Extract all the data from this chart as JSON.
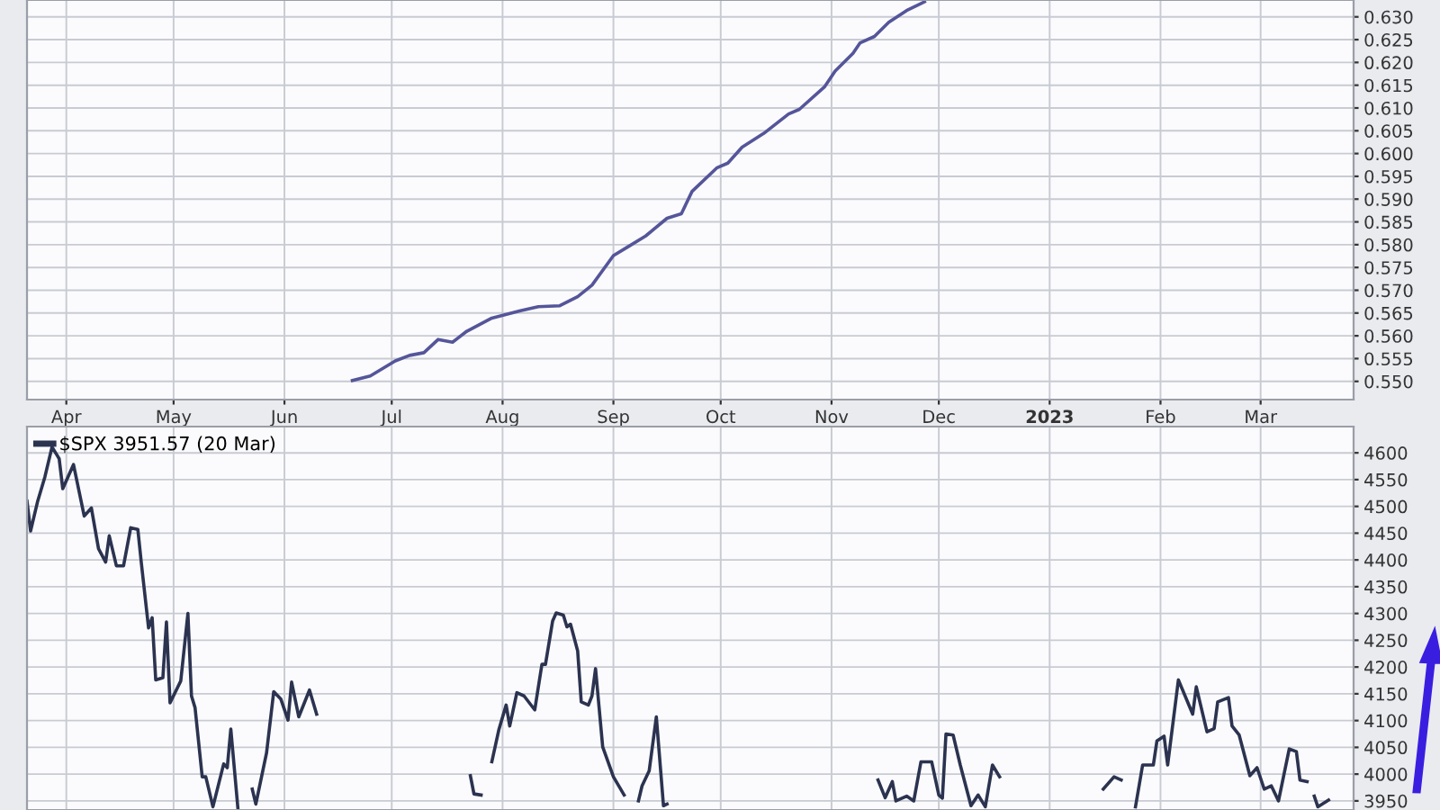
{
  "chart_data": [
    {
      "type": "line",
      "x": [
        "2022-06-20",
        "2022-06-25",
        "2022-07-02",
        "2022-07-06",
        "2022-07-10",
        "2022-07-14",
        "2022-07-18",
        "2022-07-22",
        "2022-07-29",
        "2022-08-06",
        "2022-08-11",
        "2022-08-17",
        "2022-08-22",
        "2022-08-26",
        "2022-09-01",
        "2022-09-05",
        "2022-09-10",
        "2022-09-16",
        "2022-09-20",
        "2022-09-23",
        "2022-09-30",
        "2022-10-03",
        "2022-10-07",
        "2022-10-13",
        "2022-10-20",
        "2022-10-23",
        "2022-10-30",
        "2022-11-02",
        "2022-11-07",
        "2022-11-09",
        "2022-11-13",
        "2022-11-17",
        "2022-11-22",
        "2022-11-27"
      ],
      "series": [
        {
          "color": "#55559a",
          "values": [
            0.5502,
            0.5512,
            0.5545,
            0.5557,
            0.5563,
            0.5592,
            0.5586,
            0.561,
            0.5639,
            0.5655,
            0.5664,
            0.5666,
            0.5686,
            0.5711,
            0.5776,
            0.5795,
            0.5819,
            0.5858,
            0.5868,
            0.5917,
            0.5969,
            0.5979,
            0.6014,
            0.6044,
            0.6087,
            0.6097,
            0.6146,
            0.6181,
            0.622,
            0.6243,
            0.6257,
            0.6288,
            0.6314,
            0.6333
          ]
        }
      ],
      "xlim": [
        "2022-03-21",
        "2023-03-27"
      ],
      "xticks": [
        {
          "value": "2022-04-01",
          "label": "Apr"
        },
        {
          "value": "2022-05-01",
          "label": "May"
        },
        {
          "value": "2022-06-01",
          "label": "Jun"
        },
        {
          "value": "2022-07-01",
          "label": "Jul"
        },
        {
          "value": "2022-08-01",
          "label": "Aug"
        },
        {
          "value": "2022-09-01",
          "label": "Sep"
        },
        {
          "value": "2022-10-01",
          "label": "Oct"
        },
        {
          "value": "2022-11-01",
          "label": "Nov"
        },
        {
          "value": "2022-12-01",
          "label": "Dec"
        },
        {
          "value": "2023-01-01",
          "label": "2023"
        },
        {
          "value": "2023-02-01",
          "label": "Feb"
        },
        {
          "value": "2023-03-01",
          "label": "Mar"
        }
      ],
      "ylim": [
        0.546,
        0.6337
      ],
      "yticks": [
        {
          "value": 0.55,
          "label": "0.550"
        },
        {
          "value": 0.555,
          "label": "0.555"
        },
        {
          "value": 0.56,
          "label": "0.560"
        },
        {
          "value": 0.565,
          "label": "0.565"
        },
        {
          "value": 0.57,
          "label": "0.570"
        },
        {
          "value": 0.575,
          "label": "0.575"
        },
        {
          "value": 0.58,
          "label": "0.580"
        },
        {
          "value": 0.585,
          "label": "0.585"
        },
        {
          "value": 0.59,
          "label": "0.590"
        },
        {
          "value": 0.595,
          "label": "0.595"
        },
        {
          "value": 0.6,
          "label": "0.600"
        },
        {
          "value": 0.605,
          "label": "0.605"
        },
        {
          "value": 0.61,
          "label": "0.610"
        },
        {
          "value": 0.615,
          "label": "0.615"
        },
        {
          "value": 0.62,
          "label": "0.620"
        },
        {
          "value": 0.625,
          "label": "0.625"
        },
        {
          "value": 0.63,
          "label": "0.630"
        }
      ],
      "grid": true,
      "legend": false,
      "marker": "none",
      "line_style": "solid"
    },
    {
      "type": "line",
      "x": [
        "2022-03-21",
        "2022-03-22",
        "2022-03-24",
        "2022-03-26",
        "2022-03-28",
        "2022-03-30",
        "2022-03-31",
        "2022-04-03",
        "2022-04-06",
        "2022-04-08",
        "2022-04-10",
        "2022-04-12",
        "2022-04-13",
        "2022-04-15",
        "2022-04-17",
        "2022-04-19",
        "2022-04-21",
        "2022-04-22",
        "2022-04-24",
        "2022-04-25",
        "2022-04-26",
        "2022-04-28",
        "2022-04-29",
        "2022-04-30",
        "2022-05-03",
        "2022-05-05",
        "2022-05-06",
        "2022-05-07",
        "2022-05-09",
        "2022-05-10",
        "2022-05-12",
        "2022-05-15",
        "2022-05-16",
        "2022-05-17",
        "2022-05-19",
        "2022-05-21",
        "2022-05-23",
        "2022-05-24",
        "2022-05-27",
        "2022-05-29",
        "2022-05-31",
        "2022-06-02",
        "2022-06-03",
        "2022-06-05",
        "2022-06-08",
        "2022-06-10",
        "2022-06-12",
        "2022-07-21",
        "2022-07-23",
        "2022-07-24",
        "2022-07-26",
        "2022-07-28",
        "2022-07-29",
        "2022-07-31",
        "2022-08-02",
        "2022-08-03",
        "2022-08-05",
        "2022-08-07",
        "2022-08-10",
        "2022-08-12",
        "2022-08-13",
        "2022-08-15",
        "2022-08-16",
        "2022-08-18",
        "2022-08-19",
        "2022-08-20",
        "2022-08-22",
        "2022-08-23",
        "2022-08-25",
        "2022-08-26",
        "2022-08-27",
        "2022-08-29",
        "2022-09-01",
        "2022-09-04",
        "2022-09-06",
        "2022-09-08",
        "2022-09-09",
        "2022-09-11",
        "2022-09-13",
        "2022-09-15",
        "2022-09-16",
        "2022-09-18",
        "2022-11-12",
        "2022-11-14",
        "2022-11-16",
        "2022-11-18",
        "2022-11-19",
        "2022-11-22",
        "2022-11-24",
        "2022-11-26",
        "2022-11-29",
        "2022-12-01",
        "2022-12-02",
        "2022-12-03",
        "2022-12-05",
        "2022-12-07",
        "2022-12-10",
        "2022-12-12",
        "2022-12-14",
        "2022-12-16",
        "2022-12-18",
        "2022-12-20",
        "2023-01-14",
        "2023-01-16",
        "2023-01-19",
        "2023-01-21",
        "2023-01-23",
        "2023-01-25",
        "2023-01-27",
        "2023-01-30",
        "2023-01-31",
        "2023-02-02",
        "2023-02-03",
        "2023-02-06",
        "2023-02-10",
        "2023-02-11",
        "2023-02-14",
        "2023-02-16",
        "2023-02-17",
        "2023-02-20",
        "2023-02-21",
        "2023-02-23",
        "2023-02-26",
        "2023-02-28",
        "2023-03-02",
        "2023-03-04",
        "2023-03-06",
        "2023-03-09",
        "2023-03-11",
        "2023-03-12",
        "2023-03-14",
        "2023-03-15",
        "2023-03-16",
        "2023-03-17",
        "2023-03-20"
      ],
      "series": [
        {
          "name": "$SPX 3951.57 (20 Mar)",
          "color": "#2b3350",
          "values": [
            4510,
            4454,
            4510,
            4555,
            4611,
            4589,
            4533,
            4578,
            4482,
            4497,
            4421,
            4396,
            4445,
            4389,
            4389,
            4460,
            4457,
            4393,
            4273,
            4292,
            4176,
            4180,
            4284,
            4133,
            4174,
            4300,
            4146,
            4124,
            3995,
            3995,
            3939,
            4019,
            4012,
            4084,
            3935,
            null,
            3972,
            3944,
            4040,
            4154,
            4140,
            4101,
            4172,
            4107,
            4157,
            4112,
            null,
            null,
            3997,
            3963,
            3961,
            null,
            4023,
            4084,
            4129,
            4090,
            4152,
            4146,
            4120,
            4205,
            4205,
            4286,
            4301,
            4297,
            4275,
            4280,
            4230,
            4135,
            4129,
            4146,
            4197,
            4051,
            3995,
            3961,
            null,
            3950,
            3978,
            4006,
            4107,
            3941,
            3944,
            null,
            null,
            3989,
            3956,
            3986,
            3950,
            3959,
            3950,
            4023,
            4023,
            3961,
            3955,
            4075,
            4073,
            4017,
            3941,
            3961,
            3939,
            4017,
            3995,
            null,
            null,
            3972,
            3995,
            3989,
            null,
            3939,
            4017,
            4017,
            4062,
            4071,
            4017,
            4176,
            4112,
            4163,
            4079,
            4085,
            4135,
            4143,
            4090,
            4073,
            3997,
            4012,
            3972,
            3978,
            3950,
            4047,
            4042,
            3989,
            3986,
            null,
            3959,
            3939,
            3951.57
          ]
        }
      ],
      "xlim": [
        "2022-03-21",
        "2023-03-27"
      ],
      "xticks": [
        "2022-04-01",
        "2022-05-01",
        "2022-06-01",
        "2022-07-01",
        "2022-08-01",
        "2022-09-01",
        "2022-10-01",
        "2022-11-01",
        "2022-12-01",
        "2023-01-01",
        "2023-02-01",
        "2023-03-01"
      ],
      "tick_labels": "y",
      "ylim": [
        3933,
        4649
      ],
      "yticks": [
        3950,
        4000,
        4050,
        4100,
        4150,
        4200,
        4250,
        4300,
        4350,
        4400,
        4450,
        4500,
        4550,
        4600
      ],
      "grid": true,
      "legend": "top left",
      "marker": "none",
      "line_style": "solid"
    }
  ]
}
